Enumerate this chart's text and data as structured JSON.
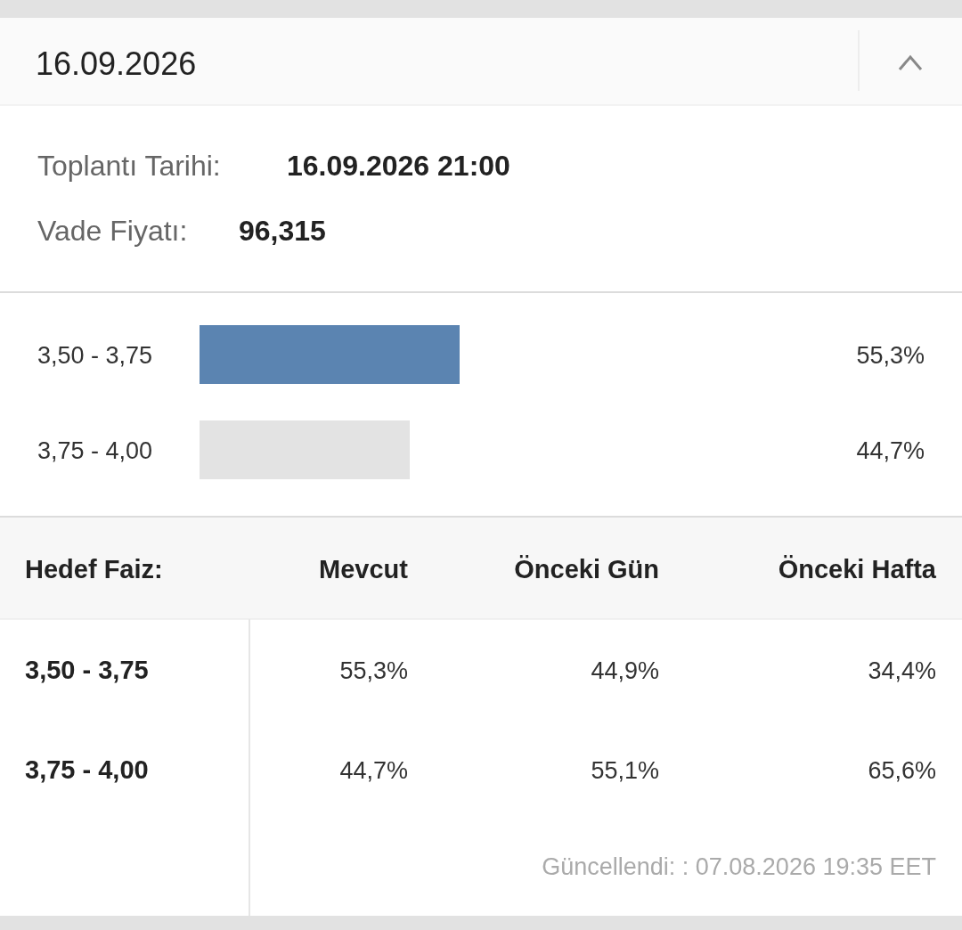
{
  "chart_data": [
    {
      "type": "bar",
      "title": "16.09.2026",
      "annotations": [
        "Toplantı Tarihi:",
        "16.09.2026 21:00",
        "Vade Fiyatı:",
        "96,315"
      ],
      "orientation": "horizontal",
      "categories": [
        "3,50 - 3,75",
        "3,75 - 4,00"
      ],
      "values": [
        55.3,
        44.7
      ],
      "colors": [
        "#5b84b1",
        "#e3e3e3"
      ],
      "value_labels": [
        "55,3%",
        "44,7%"
      ],
      "tick_labels": "y"
    },
    {
      "type": "other",
      "ylabel": "Hedef Faiz:",
      "categories": [
        "Mevcut",
        "Önceki Gün",
        "Önceki Hafta"
      ],
      "y_categories": [
        "3,50 - 3,75",
        "3,75 - 4,00"
      ],
      "cell_labels": [
        [
          "55,3%",
          "44,9%",
          "34,4%"
        ],
        [
          "44,7%",
          "55,1%",
          "65,6%"
        ]
      ],
      "annotations": [
        "Güncellendi: : 07.08.2026 19:35 EET"
      ]
    }
  ]
}
